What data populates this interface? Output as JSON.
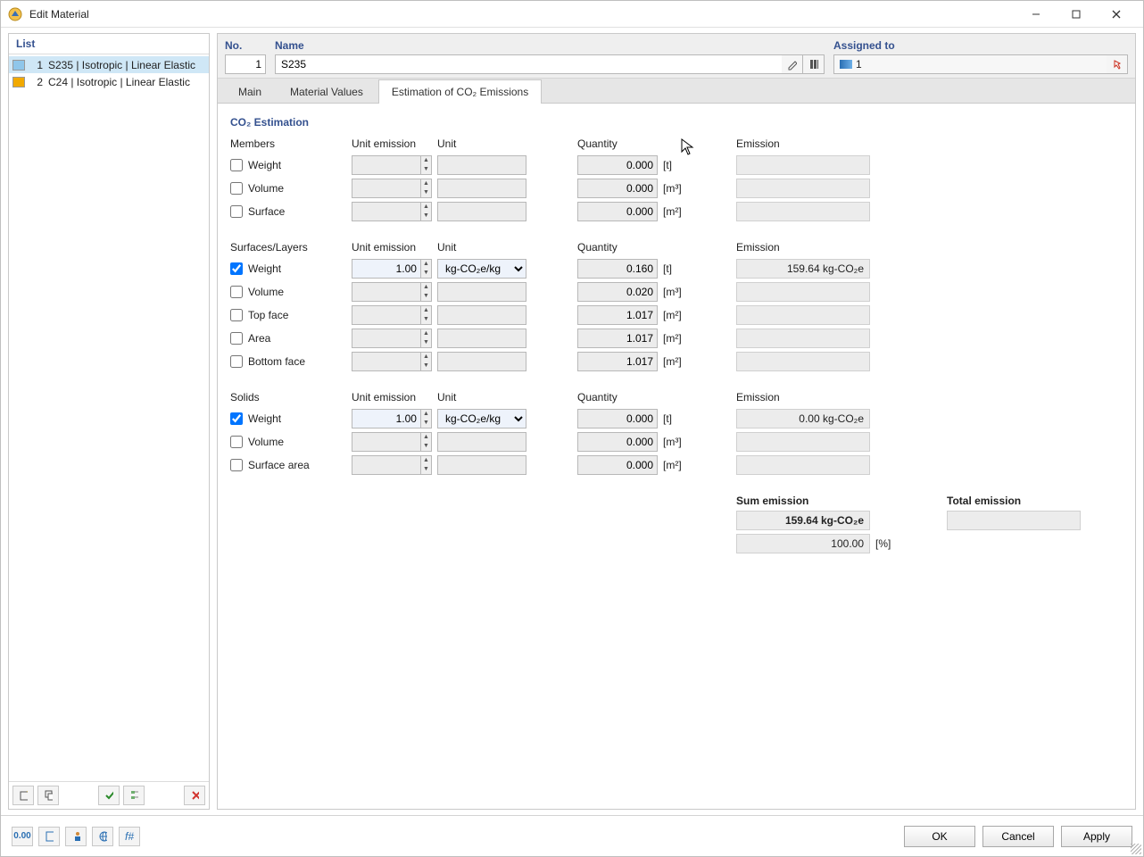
{
  "window": {
    "title": "Edit Material"
  },
  "list": {
    "header": "List",
    "items": [
      {
        "num": "1",
        "label": "S235 | Isotropic | Linear Elastic",
        "swatch": "#8fc6ea",
        "selected": true
      },
      {
        "num": "2",
        "label": "C24 | Isotropic | Linear Elastic",
        "swatch": "#f1a900",
        "selected": false
      }
    ]
  },
  "top": {
    "no_label": "No.",
    "no_value": "1",
    "name_label": "Name",
    "name_value": "S235",
    "assigned_label": "Assigned to",
    "assigned_value": "1"
  },
  "tabs": {
    "main": "Main",
    "values": "Material Values",
    "co2": "Estimation of CO₂ Emissions"
  },
  "section_title": "CO₂ Estimation",
  "col": {
    "unit_emission": "Unit emission",
    "unit": "Unit",
    "quantity": "Quantity",
    "emission": "Emission"
  },
  "groups": {
    "members": {
      "title": "Members",
      "rows": [
        {
          "label": "Weight",
          "checked": false,
          "ue": "",
          "unit": "",
          "qty": "0.000",
          "qu": "[t]",
          "em": ""
        },
        {
          "label": "Volume",
          "checked": false,
          "ue": "",
          "unit": "",
          "qty": "0.000",
          "qu": "[m³]",
          "em": ""
        },
        {
          "label": "Surface",
          "checked": false,
          "ue": "",
          "unit": "",
          "qty": "0.000",
          "qu": "[m²]",
          "em": ""
        }
      ]
    },
    "surfaces": {
      "title": "Surfaces/Layers",
      "rows": [
        {
          "label": "Weight",
          "checked": true,
          "ue": "1.00",
          "unit": "kg-CO₂e/kg",
          "qty": "0.160",
          "qu": "[t]",
          "em": "159.64 kg-CO₂e"
        },
        {
          "label": "Volume",
          "checked": false,
          "ue": "",
          "unit": "",
          "qty": "0.020",
          "qu": "[m³]",
          "em": ""
        },
        {
          "label": "Top face",
          "checked": false,
          "ue": "",
          "unit": "",
          "qty": "1.017",
          "qu": "[m²]",
          "em": ""
        },
        {
          "label": "Area",
          "checked": false,
          "ue": "",
          "unit": "",
          "qty": "1.017",
          "qu": "[m²]",
          "em": ""
        },
        {
          "label": "Bottom face",
          "checked": false,
          "ue": "",
          "unit": "",
          "qty": "1.017",
          "qu": "[m²]",
          "em": ""
        }
      ]
    },
    "solids": {
      "title": "Solids",
      "rows": [
        {
          "label": "Weight",
          "checked": true,
          "ue": "1.00",
          "unit": "kg-CO₂e/kg",
          "qty": "0.000",
          "qu": "[t]",
          "em": "0.00 kg-CO₂e"
        },
        {
          "label": "Volume",
          "checked": false,
          "ue": "",
          "unit": "",
          "qty": "0.000",
          "qu": "[m³]",
          "em": ""
        },
        {
          "label": "Surface area",
          "checked": false,
          "ue": "",
          "unit": "",
          "qty": "0.000",
          "qu": "[m²]",
          "em": ""
        }
      ]
    }
  },
  "sums": {
    "sum_label": "Sum emission",
    "total_label": "Total emission",
    "sum_value": "159.64 kg-CO₂e",
    "pct_value": "100.00",
    "pct_unit": "[%]",
    "total_value": ""
  },
  "buttons": {
    "ok": "OK",
    "cancel": "Cancel",
    "apply": "Apply"
  }
}
